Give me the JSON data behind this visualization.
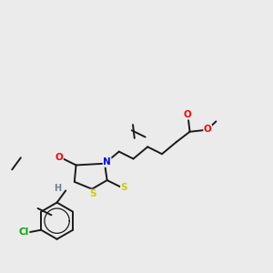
{
  "background_color": "#ebebeb",
  "bond_color": "#1a1a1a",
  "atom_colors": {
    "O": "#ff0000",
    "N": "#0000ff",
    "S": "#cccc00",
    "Cl": "#00aa00",
    "H": "#708090",
    "C": "#1a1a1a"
  },
  "figsize": [
    3.0,
    3.0
  ],
  "dpi": 100
}
